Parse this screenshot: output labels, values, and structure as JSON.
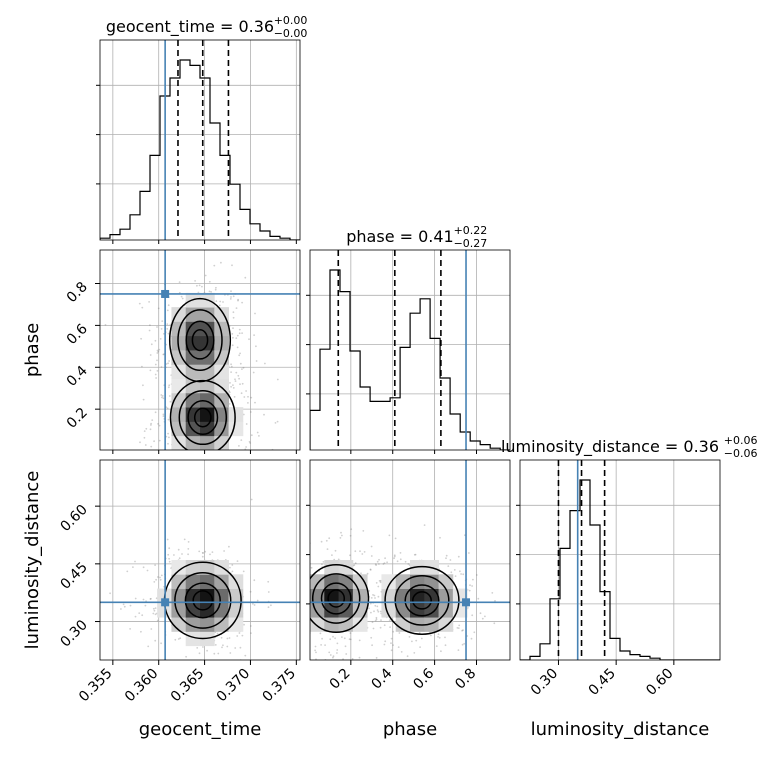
{
  "chart_data": {
    "type": "corner",
    "parameters": [
      "geocent_time",
      "phase",
      "luminosity_distance"
    ],
    "truths": {
      "geocent_time": 0.3607,
      "phase": 0.75,
      "luminosity_distance": 0.35
    },
    "titles": [
      {
        "param": "geocent_time",
        "prefix": "geocent_time = 0.36",
        "plus": "+0.00",
        "minus": "−0.00"
      },
      {
        "param": "phase",
        "prefix": "phase = 0.41",
        "plus": "+0.22",
        "minus": "−0.27"
      },
      {
        "param": "luminosity_distance",
        "prefix": "luminosity_distance = 0.36",
        "plus": "+0.06",
        "minus": "−0.06"
      }
    ],
    "ranges": {
      "geocent_time": [
        0.3536,
        0.3754
      ],
      "phase": [
        0.005,
        0.96
      ],
      "luminosity_distance": [
        0.2,
        0.72
      ]
    },
    "ticks": {
      "geocent_time": [
        "0.355",
        "0.360",
        "0.365",
        "0.370",
        "0.375"
      ],
      "phase": [
        "0.2",
        "0.4",
        "0.6",
        "0.8"
      ],
      "luminosity_distance": [
        "0.30",
        "0.45",
        "0.60"
      ]
    },
    "quantiles": {
      "geocent_time": [
        0.3621,
        0.3648,
        0.3676
      ],
      "phase": [
        0.14,
        0.41,
        0.63
      ],
      "luminosity_distance": [
        0.3,
        0.36,
        0.42
      ]
    },
    "histograms": {
      "geocent_time": {
        "bin_start": 0.3536,
        "bin_width": 0.00109,
        "counts": [
          1,
          3,
          6,
          14,
          27,
          47,
          80,
          90,
          100,
          97,
          90,
          65,
          47,
          31,
          17,
          9,
          5,
          2,
          1,
          0
        ]
      },
      "phase": {
        "bin_start": 0.005,
        "bin_width": 0.0478,
        "counts": [
          22,
          56,
          100,
          88,
          55,
          35,
          27,
          27,
          29,
          57,
          76,
          84,
          62,
          40,
          20,
          10,
          5,
          3,
          1,
          0
        ]
      },
      "luminosity_distance": {
        "bin_start": 0.2,
        "bin_width": 0.026,
        "counts": [
          0,
          2,
          9,
          34,
          62,
          83,
          100,
          75,
          38,
          12,
          5,
          3,
          2,
          1,
          0,
          0,
          0,
          0,
          0,
          0
        ]
      }
    },
    "blobs": [
      {
        "x": "geocent_time",
        "y": "phase",
        "centers": [
          [
            0.3645,
            0.53,
            0.0015,
            0.09,
            1.0
          ],
          [
            0.3648,
            0.16,
            0.0016,
            0.08,
            1.1
          ]
        ]
      },
      {
        "x": "geocent_time",
        "y": "luminosity_distance",
        "centers": [
          [
            0.3648,
            0.355,
            0.0019,
            0.045,
            1.0
          ]
        ]
      },
      {
        "x": "phase",
        "y": "luminosity_distance",
        "centers": [
          [
            0.13,
            0.36,
            0.07,
            0.04,
            1.0
          ],
          [
            0.54,
            0.355,
            0.08,
            0.04,
            0.95
          ]
        ]
      }
    ],
    "colors": {
      "truth": "#4682b4",
      "hist": "#000000",
      "grid": "#b0b0b0"
    },
    "grid": true
  }
}
